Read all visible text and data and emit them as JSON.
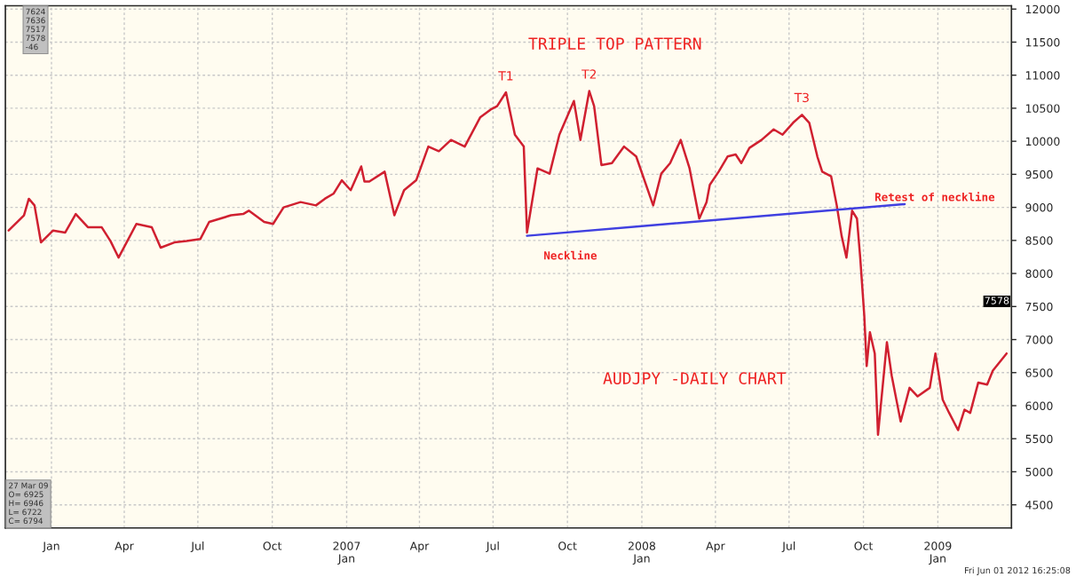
{
  "chart_data": {
    "type": "line",
    "x": [
      "2005-11-09",
      "2005-11-28",
      "2005-12-04",
      "2005-12-11",
      "2005-12-19",
      "2006-01-03",
      "2006-01-18",
      "2006-01-31",
      "2006-02-15",
      "2006-03-04",
      "2006-03-15",
      "2006-03-25",
      "2006-04-16",
      "2006-05-05",
      "2006-05-16",
      "2006-06-02",
      "2006-06-17",
      "2006-07-04",
      "2006-07-15",
      "2006-08-11",
      "2006-08-26",
      "2006-09-02",
      "2006-09-21",
      "2006-10-02",
      "2006-10-15",
      "2006-11-05",
      "2006-11-24",
      "2006-12-05",
      "2006-12-16",
      "2006-12-26",
      "2007-01-06",
      "2007-01-19",
      "2007-01-23",
      "2007-01-29",
      "2007-02-17",
      "2007-03-01",
      "2007-03-13",
      "2007-03-28",
      "2007-04-12",
      "2007-04-25",
      "2007-05-10",
      "2007-05-27",
      "2007-06-15",
      "2007-06-28",
      "2007-07-06",
      "2007-07-17",
      "2007-07-28",
      "2007-08-08",
      "2007-08-12",
      "2007-08-25",
      "2007-09-09",
      "2007-09-21",
      "2007-10-09",
      "2007-10-17",
      "2007-10-28",
      "2007-11-03",
      "2007-11-12",
      "2007-11-25",
      "2007-12-10",
      "2007-12-25",
      "2008-01-15",
      "2008-01-25",
      "2008-02-05",
      "2008-02-18",
      "2008-02-29",
      "2008-03-12",
      "2008-03-21",
      "2008-03-25",
      "2008-04-05",
      "2008-04-16",
      "2008-04-26",
      "2008-05-03",
      "2008-05-13",
      "2008-05-28",
      "2008-06-12",
      "2008-06-23",
      "2008-07-06",
      "2008-07-17",
      "2008-07-26",
      "2008-08-05",
      "2008-08-11",
      "2008-08-22",
      "2008-08-29",
      "2008-09-04",
      "2008-09-10",
      "2008-09-17",
      "2008-09-23",
      "2008-09-27",
      "2008-10-02",
      "2008-10-05",
      "2008-10-09",
      "2008-10-15",
      "2008-10-19",
      "2008-10-30",
      "2008-11-05",
      "2008-11-16",
      "2008-11-27",
      "2008-12-07",
      "2008-12-22",
      "2008-12-29",
      "2009-01-07",
      "2009-01-15",
      "2009-01-26",
      "2009-02-03",
      "2009-02-10",
      "2009-02-20",
      "2009-03-03",
      "2009-03-10",
      "2009-03-27"
    ],
    "series": [
      {
        "color": "#d02030",
        "values": [
          8650,
          8880,
          9130,
          9030,
          8470,
          8650,
          8620,
          8900,
          8700,
          8700,
          8490,
          8240,
          8750,
          8700,
          8390,
          8470,
          8490,
          8520,
          8780,
          8880,
          8900,
          8950,
          8780,
          8750,
          9000,
          9080,
          9030,
          9130,
          9210,
          9410,
          9260,
          9620,
          9390,
          9390,
          9540,
          8880,
          9260,
          9410,
          9920,
          9850,
          10020,
          9920,
          10360,
          10480,
          10530,
          10740,
          10100,
          9920,
          8620,
          9590,
          9510,
          10100,
          10610,
          10020,
          10760,
          10530,
          9640,
          9670,
          9920,
          9770,
          9030,
          9510,
          9670,
          10020,
          9590,
          8830,
          9080,
          9340,
          9540,
          9770,
          9800,
          9670,
          9900,
          10020,
          10180,
          10100,
          10280,
          10400,
          10280,
          9770,
          9540,
          9470,
          9030,
          8570,
          8240,
          8950,
          8830,
          8240,
          7370,
          6600,
          7110,
          6790,
          5560,
          6960,
          6450,
          5760,
          6270,
          6140,
          6270,
          6790,
          6090,
          5890,
          5630,
          5940,
          5890,
          6350,
          6320,
          6530,
          6790
        ]
      },
      {
        "color": "#4040e0",
        "x": [
          "2007-08-12",
          "2008-11-21"
        ],
        "values": [
          8570,
          9050
        ]
      }
    ],
    "xlim": [
      "2005-11-05",
      "2009-04-02"
    ],
    "xticks": [
      {
        "value": "2006-01-01",
        "label": "Jan"
      },
      {
        "value": "2006-04-01",
        "label": "Apr"
      },
      {
        "value": "2006-07-01",
        "label": "Jul"
      },
      {
        "value": "2006-10-01",
        "label": "Oct"
      },
      {
        "value": "2007-01-01",
        "label": "2007\nJan"
      },
      {
        "value": "2007-04-01",
        "label": "Apr"
      },
      {
        "value": "2007-07-01",
        "label": "Jul"
      },
      {
        "value": "2007-10-01",
        "label": "Oct"
      },
      {
        "value": "2008-01-01",
        "label": "2008\nJan"
      },
      {
        "value": "2008-04-01",
        "label": "Apr"
      },
      {
        "value": "2008-07-01",
        "label": "Jul"
      },
      {
        "value": "2008-10-01",
        "label": "Oct"
      },
      {
        "value": "2009-01-01",
        "label": "2009\nJan"
      }
    ],
    "ylim": [
      4150,
      12050
    ],
    "yticks": [
      4500,
      5000,
      5500,
      6000,
      6500,
      7000,
      7500,
      8000,
      8500,
      9000,
      9500,
      10000,
      10500,
      11000,
      11500,
      12000
    ],
    "grid": true,
    "annotations": [
      "TRIPLE TOP PATTERN",
      "AUDJPY -DAILY CHART",
      "Neckline",
      "Retest of neckline",
      "7624\n7636\n7517\n7578\n-46",
      "27 Mar 09\nO= 6925\nH= 6946\nL= 6722\nC= 6794",
      "Fri Jun 01 2012 16:25:08",
      {
        "text": "T1",
        "x": "2007-07-17",
        "y": 10735
      },
      {
        "text": "T2",
        "x": "2007-10-28",
        "y": 10760
      },
      {
        "text": "T3",
        "x": "2008-07-17",
        "y": 10405
      },
      {
        "text": "7578",
        "y": 7578
      }
    ]
  }
}
